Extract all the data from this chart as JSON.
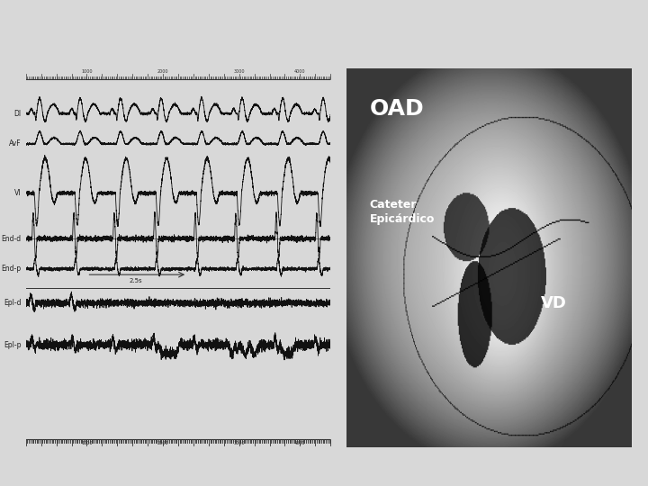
{
  "bg_color": "#f0f0f0",
  "left_panel": {
    "bg_color": "#e8e8e8",
    "labels": [
      "DI",
      "AvF",
      "VI",
      "End-d",
      "End-p",
      "Epl-d",
      "Epl-p"
    ],
    "label_color": "#222222",
    "trace_color": "#111111",
    "annotation_2s5": "2.5s",
    "arrow_color": "#333333"
  },
  "right_panel": {
    "bg_color": "#888888",
    "label_oad": "OAD",
    "label_cateter": "Cateter\nEpicárdico",
    "label_vd": "VD",
    "text_color_oad": "#000000",
    "text_color_labels": "#000000"
  },
  "outer_bg": "#d8d8d8"
}
